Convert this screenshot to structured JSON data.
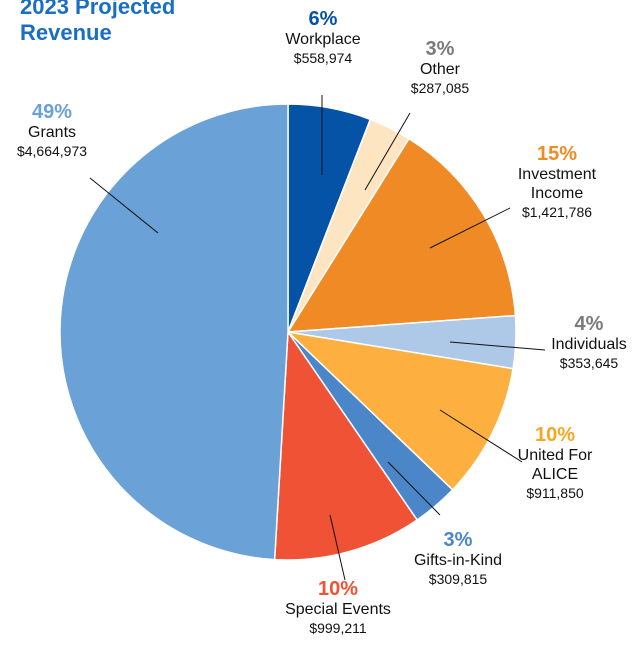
{
  "chart_data": {
    "type": "pie",
    "title": "2023 Projected Revenue",
    "categories": [
      "Workplace",
      "Other",
      "Investment Income",
      "Individuals",
      "United For ALICE",
      "Gifts-in-Kind",
      "Special Events",
      "Grants"
    ],
    "values": [
      558974,
      287085,
      1421786,
      353645,
      911850,
      309815,
      999211,
      4664973
    ],
    "value_labels": [
      "$558,974",
      "$287,085",
      "$1,421,786",
      "$353,645",
      "$911,850",
      "$309,815",
      "$999,211",
      "$4,664,973"
    ],
    "percent_labels": [
      "6%",
      "3%",
      "15%",
      "4%",
      "10%",
      "3%",
      "10%",
      "49%"
    ],
    "colors": [
      "#0553a6",
      "#fde5c2",
      "#f08a24",
      "#aec8e8",
      "#fdb03f",
      "#4a86c8",
      "#ef5234",
      "#6aa1d6"
    ],
    "percent_colors": [
      "#0553a6",
      "#7a7a7a",
      "#f08a24",
      "#7a7a7a",
      "#f5a623",
      "#4a86c8",
      "#ef5234",
      "#6aa1d6"
    ]
  }
}
